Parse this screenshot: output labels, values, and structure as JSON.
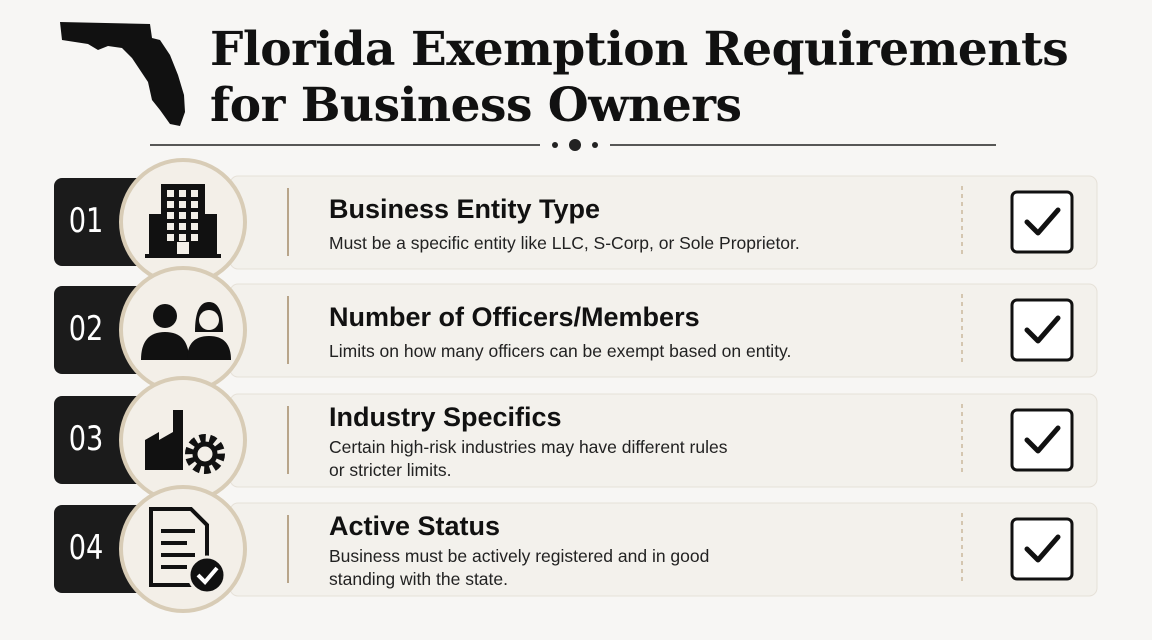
{
  "header": {
    "title_lines": [
      "Florida Exemption Requirements",
      "for Business Owners"
    ]
  },
  "items": [
    {
      "number": "01",
      "heading": "Business Entity Type",
      "description": "Must be a specific entity like LLC, S-Corp, or Sole Proprietor."
    },
    {
      "number": "02",
      "heading": "Number of Officers/Members",
      "description": "Limits on how many officers can be exempt based on entity."
    },
    {
      "number": "03",
      "heading": "Industry Specifics",
      "description": "Certain high-risk industries may have different rules or stricter limits."
    },
    {
      "number": "04",
      "heading": "Active Status",
      "description": "Business must be actively registered and in good standing with the state."
    }
  ]
}
